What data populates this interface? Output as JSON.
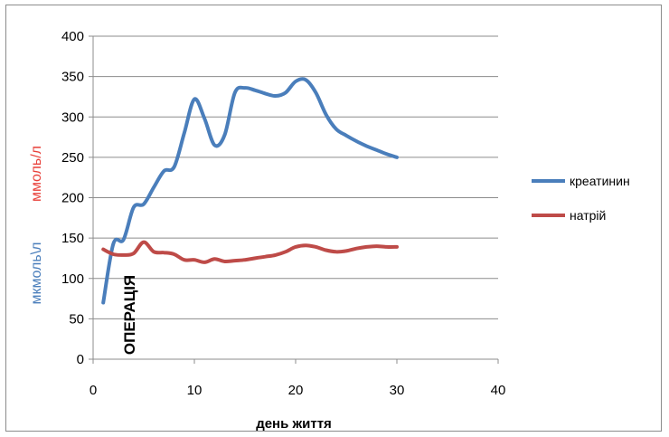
{
  "chart_data": {
    "type": "line",
    "xlabel": "день життя",
    "ylabel_primary": "мкмоль\\л",
    "ylabel_secondary": "ммоль/л",
    "ylabel_primary_color": "#4a7ebb",
    "ylabel_secondary_color": "#e8403a",
    "annotation": "ОПЕРАЦІЯ",
    "xlim": [
      0,
      40
    ],
    "ylim": [
      0,
      400
    ],
    "x_ticks": [
      0,
      10,
      20,
      30,
      40
    ],
    "y_ticks": [
      0,
      50,
      100,
      150,
      200,
      250,
      300,
      350,
      400
    ],
    "grid": true,
    "legend_position": "right",
    "series": [
      {
        "name": "креатинин",
        "color": "#4a7ebb",
        "x": [
          1,
          2,
          3,
          4,
          5,
          6,
          7,
          8,
          9,
          10,
          11,
          12,
          13,
          14,
          15,
          16,
          17,
          18,
          19,
          20,
          21,
          22,
          23,
          24,
          25,
          26,
          27,
          28,
          29,
          30
        ],
        "y": [
          70,
          143,
          148,
          188,
          192,
          213,
          233,
          238,
          280,
          322,
          298,
          265,
          278,
          330,
          336,
          333,
          329,
          326,
          330,
          344,
          346,
          330,
          303,
          285,
          277,
          270,
          264,
          259,
          254,
          250
        ]
      },
      {
        "name": "натрій",
        "color": "#be4b48",
        "x": [
          1,
          2,
          3,
          4,
          5,
          6,
          7,
          8,
          9,
          10,
          11,
          12,
          13,
          14,
          15,
          16,
          17,
          18,
          19,
          20,
          21,
          22,
          23,
          24,
          25,
          26,
          27,
          28,
          29,
          30
        ],
        "y": [
          136,
          130,
          129,
          131,
          145,
          133,
          132,
          130,
          123,
          123,
          120,
          124,
          121,
          122,
          123,
          125,
          127,
          129,
          133,
          139,
          141,
          139,
          135,
          133,
          134,
          137,
          139,
          140,
          139,
          139
        ]
      }
    ]
  }
}
